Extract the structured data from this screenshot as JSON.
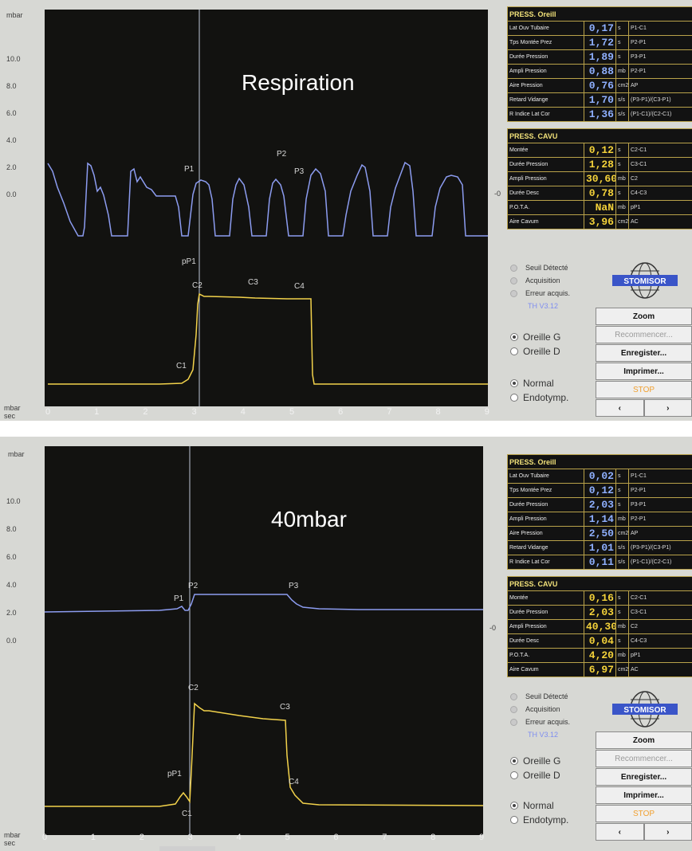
{
  "panels": [
    {
      "id": "panel1",
      "overlay_label": "Respiration",
      "y_axis_unit": "mbar",
      "y_ticks": [
        "10.0",
        "8.0",
        "6.0",
        "4.0",
        "2.0",
        "0.0"
      ],
      "x_axis_unit_top": "mbar",
      "x_axis_unit_bottom": "sec",
      "x_ticks": [
        "0",
        "1",
        "2",
        "3",
        "4",
        "5",
        "6",
        "7",
        "8",
        "9"
      ],
      "zoom_label": "< zoom >",
      "zero_marker": "-0",
      "point_labels": {
        "P1": "P1",
        "P2": "P2",
        "P3": "P3",
        "pP1": "pP1",
        "C1": "C1",
        "C2": "C2",
        "C3": "C3",
        "C4": "C4"
      },
      "ear_table": {
        "header": "PRESS. Oreill",
        "rows": [
          {
            "label": "Lat Ouv Tubaire",
            "value": "0,17",
            "unit": "s",
            "code": "P1-C1"
          },
          {
            "label": "Tps Montée Prez",
            "value": "1,72",
            "unit": "s",
            "code": "P2-P1"
          },
          {
            "label": "Durée Pression",
            "value": "1,89",
            "unit": "s",
            "code": "P3-P1"
          },
          {
            "label": "Ampli Pression",
            "value": "0,88",
            "unit": "mb",
            "code": "P2-P1"
          },
          {
            "label": "Aire Pression",
            "value": "0,76",
            "unit": "cm2",
            "code": "AP"
          },
          {
            "label": "Retard Vidange",
            "value": "1,70",
            "unit": "s/s",
            "code": "(P3-P1)/(C3-P1)"
          },
          {
            "label": "R Indice Lat Cor",
            "value": "1,36",
            "unit": "s/s",
            "code": "(P1-C1)/(C2-C1)"
          }
        ]
      },
      "cavum_table": {
        "header": "PRESS. CAVU",
        "rows": [
          {
            "label": "Montée",
            "value": "0,12",
            "unit": "s",
            "code": "C2-C1"
          },
          {
            "label": "Durée Pression",
            "value": "1,28",
            "unit": "s",
            "code": "C3-C1"
          },
          {
            "label": "Ampli Pression",
            "value": "30,60",
            "unit": "mb",
            "code": "C2"
          },
          {
            "label": "Durée Desc",
            "value": "0,78",
            "unit": "s",
            "code": "C4-C3"
          },
          {
            "label": "P.O.T.A.",
            "value": "NaN",
            "unit": "mb",
            "code": "pP1"
          },
          {
            "label": "Aire Cavum",
            "value": "3,96",
            "unit": "cm2",
            "code": "AC"
          }
        ]
      }
    },
    {
      "id": "panel2",
      "overlay_label": "40mbar",
      "y_axis_unit": "mbar",
      "y_ticks": [
        "10.0",
        "8.0",
        "6.0",
        "4.0",
        "2.0",
        "0.0"
      ],
      "x_axis_unit_top": "mbar",
      "x_axis_unit_bottom": "sec",
      "x_ticks": [
        "0",
        "1",
        "2",
        "3",
        "4",
        "5",
        "6",
        "7",
        "8",
        "9"
      ],
      "zoom_label": "< zoom >",
      "zero_marker": "-0",
      "point_labels": {
        "P1": "P1",
        "P2": "P2",
        "P3": "P3",
        "pP1": "pP1",
        "C1": "C1",
        "C2": "C2",
        "C3": "C3",
        "C4": "C4"
      },
      "ear_table": {
        "header": "PRESS. Oreill",
        "rows": [
          {
            "label": "Lat Ouv Tubaire",
            "value": "0,02",
            "unit": "s",
            "code": "P1-C1"
          },
          {
            "label": "Tps Montée Prez",
            "value": "0,12",
            "unit": "s",
            "code": "P2-P1"
          },
          {
            "label": "Durée Pression",
            "value": "2,03",
            "unit": "s",
            "code": "P3-P1"
          },
          {
            "label": "Ampli Pression",
            "value": "1,14",
            "unit": "mb",
            "code": "P2-P1"
          },
          {
            "label": "Aire Pression",
            "value": "2,50",
            "unit": "cm2",
            "code": "AP"
          },
          {
            "label": "Retard Vidange",
            "value": "1,01",
            "unit": "s/s",
            "code": "(P3-P1)/(C3-P1)"
          },
          {
            "label": "R Indice Lat Cor",
            "value": "0,11",
            "unit": "s/s",
            "code": "(P1-C1)/(C2-C1)"
          }
        ]
      },
      "cavum_table": {
        "header": "PRESS. CAVU",
        "rows": [
          {
            "label": "Montée",
            "value": "0,16",
            "unit": "s",
            "code": "C2-C1"
          },
          {
            "label": "Durée Pression",
            "value": "2,03",
            "unit": "s",
            "code": "C3-C1"
          },
          {
            "label": "Ampli Pression",
            "value": "40,30",
            "unit": "mb",
            "code": "C2"
          },
          {
            "label": "Durée Desc",
            "value": "0,04",
            "unit": "s",
            "code": "C4-C3"
          },
          {
            "label": "P.O.T.A.",
            "value": "4,20",
            "unit": "mb",
            "code": "pP1"
          },
          {
            "label": "Aire Cavum",
            "value": "6,97",
            "unit": "cm2",
            "code": "AC"
          }
        ]
      }
    }
  ],
  "status": {
    "seuil": "Seuil Détecté",
    "acquisition": "Acquisition",
    "erreur": "Erreur acquis.",
    "version": "TH V3.12"
  },
  "logo_text": "STOMISOR",
  "ear_options": {
    "left": "Oreille G",
    "right": "Oreille D"
  },
  "mode_options": {
    "normal": "Normal",
    "endo": "Endotymp."
  },
  "buttons": {
    "zoom": "Zoom",
    "restart": "Recommencer...",
    "save": "Enregister...",
    "print": "Imprimer...",
    "stop": "STOP",
    "prev": "‹",
    "next": "›"
  },
  "colors": {
    "ear_trace": "#8c9cf0",
    "cavum_trace": "#f2d24b",
    "plot_bg": "#121210"
  }
}
